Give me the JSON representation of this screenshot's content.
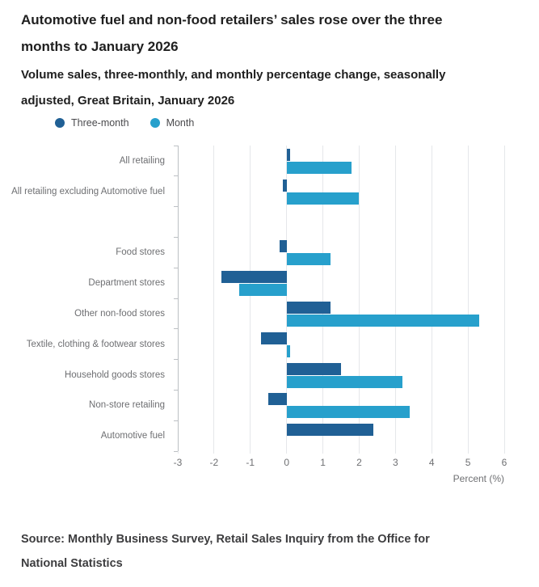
{
  "header": {
    "title": "Automotive fuel and non-food retailers’ sales rose over the three months to January 2026",
    "subtitle": "Volume sales, three-monthly, and monthly percentage change, seasonally adjusted, Great Britain, January 2026"
  },
  "chart_data": {
    "type": "bar",
    "orientation": "horizontal",
    "title": "Automotive fuel and non-food retailers’ sales rose over the three months to January 2026",
    "subtitle": "Volume sales, three-monthly, and monthly percentage change, seasonally adjusted, Great Britain, January 2026",
    "categories": [
      "All retailing",
      "All retailing excluding Automotive fuel",
      "",
      "Food stores",
      "Department stores",
      "Other non-food stores",
      "Textile, clothing & footwear stores",
      "Household goods stores",
      "Non-store retailing",
      "Automotive fuel"
    ],
    "series": [
      {
        "name": "Three-month",
        "color": "#206095",
        "values": [
          0.1,
          -0.1,
          null,
          -0.2,
          -1.8,
          1.2,
          -0.7,
          1.5,
          -0.5,
          2.4
        ]
      },
      {
        "name": "Month",
        "color": "#27a0cc",
        "values": [
          1.8,
          2.0,
          null,
          1.2,
          -1.3,
          5.3,
          0.1,
          3.2,
          3.4,
          0.0
        ]
      }
    ],
    "xlabel": "Percent (%)",
    "xticks": [
      -3,
      -2,
      -1,
      0,
      1,
      2,
      3,
      4,
      5,
      6
    ],
    "xlim": [
      -3,
      6
    ],
    "grid": true,
    "legend_position": "top"
  },
  "source": "Source: Monthly Business Survey, Retail Sales Inquiry from the Office for National Statistics"
}
